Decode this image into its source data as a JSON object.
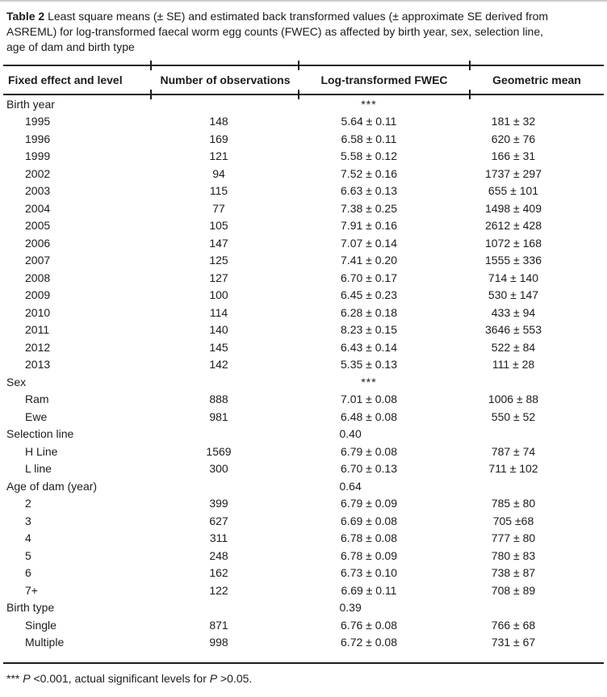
{
  "caption": {
    "label": "Table 2",
    "lines": [
      " Least square means (± SE) and estimated back transformed values (± approximate SE derived from",
      "ASREML) for log-transformed faecal worm egg counts (FWEC) as affected by birth year, sex, selection line,",
      "age of dam and birth type"
    ]
  },
  "header": {
    "col1": "Fixed effect and level",
    "col2": "Number of observations",
    "col3": "Log-transformed FWEC",
    "col4": "Geometric mean"
  },
  "rows": [
    {
      "type": "group",
      "label": "Birth year",
      "sig": "***",
      "sig_style": "stars"
    },
    {
      "type": "item",
      "label": "1995",
      "n": "148",
      "lsm": "5.64 ± 0.11",
      "gm": "181 ± 32"
    },
    {
      "type": "item",
      "label": "1996",
      "n": "169",
      "lsm": "6.58 ± 0.11",
      "gm": "620 ± 76"
    },
    {
      "type": "item",
      "label": "1999",
      "n": "121",
      "lsm": "5.58 ± 0.12",
      "gm": "166 ± 31"
    },
    {
      "type": "item",
      "label": "2002",
      "n": "94",
      "lsm": "7.52 ± 0.16",
      "gm": "1737 ± 297"
    },
    {
      "type": "item",
      "label": "2003",
      "n": "115",
      "lsm": "6.63 ± 0.13",
      "gm": "655 ± 101"
    },
    {
      "type": "item",
      "label": "2004",
      "n": "77",
      "lsm": "7.38 ± 0.25",
      "gm": "1498 ± 409"
    },
    {
      "type": "item",
      "label": "2005",
      "n": "105",
      "lsm": "7.91 ± 0.16",
      "gm": "2612 ± 428"
    },
    {
      "type": "item",
      "label": "2006",
      "n": "147",
      "lsm": "7.07 ± 0.14",
      "gm": "1072 ± 168"
    },
    {
      "type": "item",
      "label": "2007",
      "n": "125",
      "lsm": "7.41 ± 0.20",
      "gm": "1555 ± 336"
    },
    {
      "type": "item",
      "label": "2008",
      "n": "127",
      "lsm": "6.70 ± 0.17",
      "gm": "714 ± 140"
    },
    {
      "type": "item",
      "label": "2009",
      "n": "100",
      "lsm": "6.45 ± 0.23",
      "gm": "530 ± 147"
    },
    {
      "type": "item",
      "label": "2010",
      "n": "114",
      "lsm": "6.28 ± 0.18",
      "gm": "433 ± 94"
    },
    {
      "type": "item",
      "label": "2011",
      "n": "140",
      "lsm": "8.23 ± 0.15",
      "gm": "3646 ± 553"
    },
    {
      "type": "item",
      "label": "2012",
      "n": "145",
      "lsm": "6.43 ± 0.14",
      "gm": "522 ± 84"
    },
    {
      "type": "item",
      "label": "2013",
      "n": "142",
      "lsm": "5.35 ± 0.13",
      "gm": "111 ± 28"
    },
    {
      "type": "group",
      "label": "Sex",
      "sig": "***",
      "sig_style": "stars"
    },
    {
      "type": "item",
      "label": "Ram",
      "n": "888",
      "lsm": "7.01 ± 0.08",
      "gm": "1006 ± 88"
    },
    {
      "type": "item",
      "label": "Ewe",
      "n": "981",
      "lsm": "6.48 ± 0.08",
      "gm": "550 ± 52"
    },
    {
      "type": "group",
      "label": "Selection line",
      "sig": "0.40",
      "sig_style": "pval"
    },
    {
      "type": "item",
      "label": "H Line",
      "n": "1569",
      "lsm": "6.79 ± 0.08",
      "gm": "787 ± 74"
    },
    {
      "type": "item",
      "label": "L line",
      "n": "300",
      "lsm": "6.70 ± 0.13",
      "gm": "711 ± 102"
    },
    {
      "type": "group",
      "label": "Age of dam (year)",
      "sig": "0.64",
      "sig_style": "pval"
    },
    {
      "type": "item",
      "label": "2",
      "n": "399",
      "lsm": "6.79 ± 0.09",
      "gm": "785 ± 80"
    },
    {
      "type": "item",
      "label": "3",
      "n": "627",
      "lsm": "6.69 ± 0.08",
      "gm": "705 ±68"
    },
    {
      "type": "item",
      "label": "4",
      "n": "311",
      "lsm": "6.78 ± 0.08",
      "gm": "777 ± 80"
    },
    {
      "type": "item",
      "label": "5",
      "n": "248",
      "lsm": "6.78 ± 0.09",
      "gm": "780 ± 83"
    },
    {
      "type": "item",
      "label": "6",
      "n": "162",
      "lsm": "6.73 ± 0.10",
      "gm": "738 ± 87"
    },
    {
      "type": "item",
      "label": "7+",
      "n": "122",
      "lsm": "6.69 ± 0.11",
      "gm": "708 ± 89"
    },
    {
      "type": "group",
      "label": "Birth type",
      "sig": "0.39",
      "sig_style": "pval"
    },
    {
      "type": "item",
      "label": "Single",
      "n": "871",
      "lsm": "6.76 ± 0.08",
      "gm": "766 ± 68"
    },
    {
      "type": "item",
      "label": "Multiple",
      "n": "998",
      "lsm": "6.72 ± 0.08",
      "gm": "731 ± 67"
    }
  ],
  "footnote": {
    "marker": "*** ",
    "p1": "P",
    "mid": " <0.001, actual significant levels for ",
    "p2": "P",
    "end": " >0.05."
  },
  "colors": {
    "text": "#1b1b1b",
    "rule": "#1b1b1b",
    "background": "#ffffff"
  }
}
